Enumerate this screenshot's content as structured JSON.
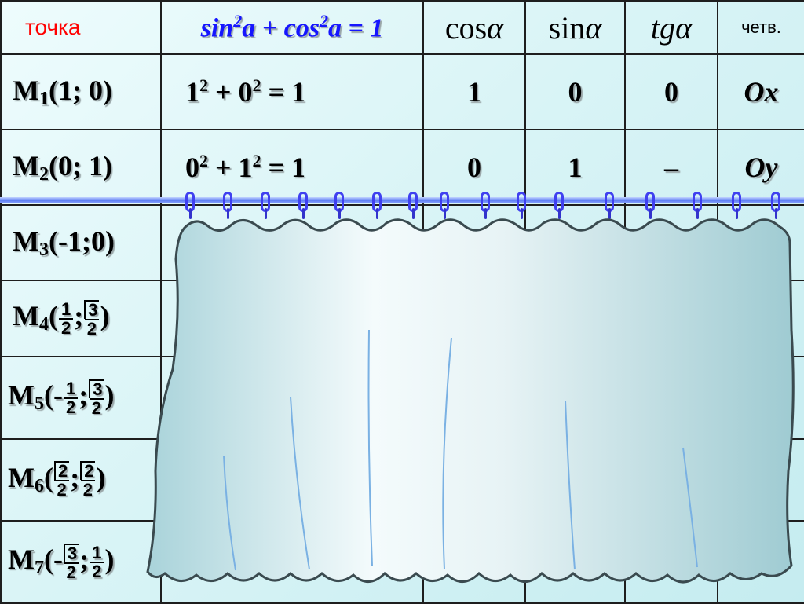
{
  "header": {
    "point_label": "точка",
    "identity": [
      "sin",
      "2",
      "a + cos",
      "2",
      "a = 1"
    ],
    "cos_label": "cos",
    "sin_label": "sin",
    "tg_label": "tg",
    "alpha": "α",
    "quadrant_label": "четв."
  },
  "rows": [
    {
      "point": {
        "name": "M",
        "idx": "1",
        "coords": "(1; 0)"
      },
      "equation": {
        "a": "1",
        "b": "0",
        "rhs": "= 1"
      },
      "cos": "1",
      "sin": "0",
      "tg": "0",
      "quadrant": "Ox"
    },
    {
      "point": {
        "name": "M",
        "idx": "2",
        "coords": "(0; 1)"
      },
      "equation": {
        "a": "0",
        "b": "1",
        "rhs": "= 1"
      },
      "cos": "0",
      "sin": "1",
      "tg": "–",
      "quadrant": "Oy"
    },
    {
      "point": {
        "name": "M",
        "idx": "3",
        "coords": "(-1;0)"
      }
    },
    {
      "point": {
        "name": "M",
        "idx": "4",
        "open": "(",
        "x_num": "1",
        "x_den": "2",
        "sep": ";",
        "y_num": "3",
        "y_den": "2",
        "close": ")"
      }
    },
    {
      "point": {
        "name": "M",
        "idx": "5",
        "open": "(-",
        "x_num": "1",
        "x_den": "2",
        "sep": ";",
        "y_num": "3",
        "y_den": "2",
        "close": ")"
      }
    },
    {
      "point": {
        "name": "M",
        "idx": "6",
        "open": "(",
        "x_num": "2",
        "x_den": "2",
        "sep": ";",
        "y_num": "2",
        "y_den": "2",
        "close": ")"
      }
    },
    {
      "point": {
        "name": "M",
        "idx": "7",
        "open": "(-",
        "x_num": "3",
        "x_den": "2",
        "sep": ";",
        "y_num": "1",
        "y_den": "2",
        "close": ")"
      }
    }
  ],
  "colors": {
    "point_header": "#ff0000",
    "identity_header": "#1515ff",
    "curtain": "#a8d2d9",
    "rings": "#4040f0"
  }
}
